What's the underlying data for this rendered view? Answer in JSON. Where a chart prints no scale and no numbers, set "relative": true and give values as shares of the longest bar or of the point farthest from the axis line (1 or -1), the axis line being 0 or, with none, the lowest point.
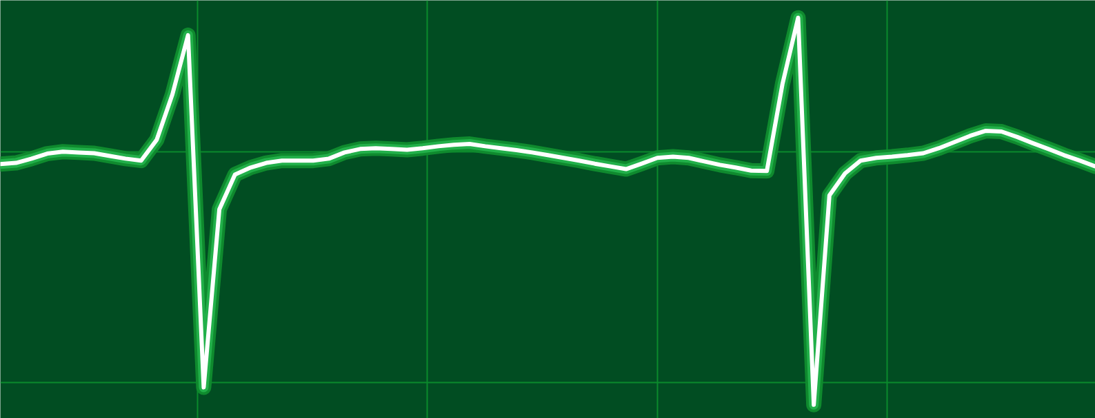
{
  "chart_data": {
    "type": "line",
    "relative": true,
    "grid": true,
    "marker": "none",
    "line_style": "solid",
    "categories": [
      null,
      null,
      null,
      null,
      null,
      null,
      null,
      null,
      null,
      null,
      null,
      null,
      null,
      null,
      null,
      null,
      null,
      null,
      null,
      null,
      null,
      null,
      null,
      null,
      null,
      null,
      null,
      null,
      null,
      null,
      null,
      null,
      null,
      null,
      null,
      null,
      null,
      null,
      null,
      null,
      null,
      null,
      null,
      null,
      null,
      null,
      null,
      null,
      null,
      null,
      null,
      null,
      null,
      null,
      null,
      null,
      null,
      null,
      null,
      null,
      null,
      null,
      null,
      null,
      null,
      null,
      null,
      null,
      null,
      null,
      null
    ],
    "series": [
      {
        "color": "#ffffff",
        "values": [
          0.622,
          0.625,
          0.636,
          0.649,
          0.654,
          0.652,
          0.65,
          0.643,
          0.636,
          0.631,
          0.685,
          0.802,
          0.955,
          0.045,
          0.505,
          0.595,
          0.613,
          0.625,
          0.631,
          0.631,
          0.631,
          0.636,
          0.652,
          0.661,
          0.663,
          0.661,
          0.659,
          0.663,
          0.668,
          0.672,
          0.674,
          0.668,
          0.663,
          0.658,
          0.652,
          0.645,
          0.638,
          0.631,
          0.623,
          0.616,
          0.609,
          0.623,
          0.638,
          0.641,
          0.638,
          0.629,
          0.62,
          0.613,
          0.605,
          0.604,
          0.829,
          1,
          0,
          0.541,
          0.598,
          0.631,
          0.638,
          0.641,
          0.645,
          0.65,
          0.663,
          0.679,
          0.695,
          0.708,
          0.706,
          0.692,
          0.676,
          0.661,
          0.645,
          0.631,
          0.616
        ]
      }
    ]
  }
}
